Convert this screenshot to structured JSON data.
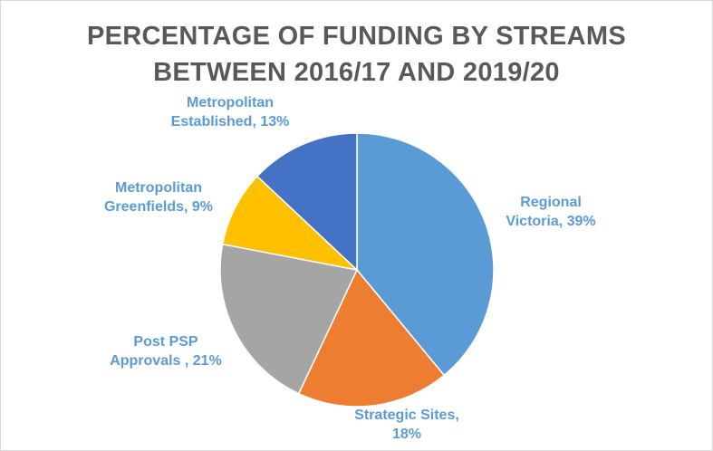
{
  "chart_data": {
    "type": "pie",
    "title": "PERCENTAGE OF FUNDING BY STREAMS BETWEEN 2016/17 AND 2019/20",
    "title_lines": [
      "PERCENTAGE OF FUNDING BY STREAMS",
      "BETWEEN 2016/17 AND 2019/20"
    ],
    "slices": [
      {
        "name": "Regional Victoria",
        "value": 39,
        "color": "#5b9bd5",
        "label_lines": [
          "Regional",
          "Victoria, 39%"
        ]
      },
      {
        "name": "Strategic Sites",
        "value": 18,
        "color": "#ed7d31",
        "label_lines": [
          "Strategic Sites,",
          "18%"
        ]
      },
      {
        "name": "Post PSP Approvals",
        "value": 21,
        "color": "#a5a5a5",
        "label_lines": [
          "Post PSP",
          "Approvals , 21%"
        ]
      },
      {
        "name": "Metropolitan Greenfields",
        "value": 9,
        "color": "#ffc000",
        "label_lines": [
          "Metropolitan",
          "Greenfields, 9%"
        ]
      },
      {
        "name": "Metropolitan Established",
        "value": 13,
        "color": "#4472c4",
        "label_lines": [
          "Metropolitan",
          "Established, 13%"
        ]
      }
    ],
    "label_color": "#5b9bd5",
    "title_color": "#595959"
  }
}
